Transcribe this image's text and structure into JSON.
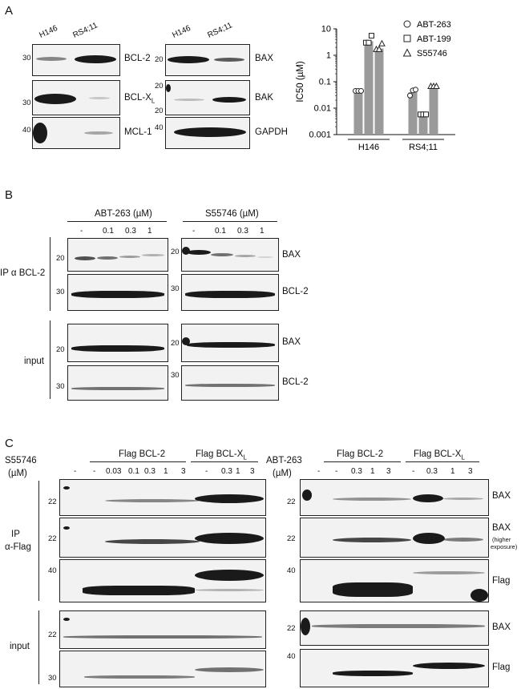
{
  "panels": {
    "a": "A",
    "b": "B",
    "c": "C"
  },
  "panel_a": {
    "lanes_left": [
      "H146",
      "RS4;11"
    ],
    "lanes_right": [
      "H146",
      "RS4;11"
    ],
    "left_labels": [
      "BCL-2",
      "BCL-X",
      "MCL-1"
    ],
    "bclxl_sub": "L",
    "right_labels": [
      "BAX",
      "BAK",
      "GAPDH"
    ],
    "mw_left": [
      "30",
      "30",
      "40"
    ],
    "mw_right": [
      "20",
      "20",
      "40"
    ],
    "mw_right_extra": "20"
  },
  "chart_data": {
    "type": "bar",
    "ylabel": "IC50 (µM)",
    "yscale": "log",
    "ylim": [
      0.001,
      10
    ],
    "ytick_labels": [
      "0.001",
      "0.01",
      "0.1",
      "1",
      "10"
    ],
    "categories": [
      "H146",
      "RS4;11"
    ],
    "series": [
      {
        "name": "ABT-263",
        "values": [
          0.047,
          0.04
        ],
        "points": [
          [
            0.045,
            0.045,
            0.045
          ],
          [
            0.03,
            0.047,
            0.05
          ]
        ]
      },
      {
        "name": "ABT-199",
        "values": [
          3.4,
          0.0058
        ],
        "points": [
          [
            3.0,
            3.0,
            5.5
          ],
          [
            0.0058,
            0.0058,
            0.0058
          ]
        ]
      },
      {
        "name": "S55746",
        "values": [
          1.8,
          0.068
        ],
        "points": [
          [
            1.7,
            1.7,
            2.8
          ],
          [
            0.068,
            0.068,
            0.068
          ]
        ]
      }
    ]
  },
  "panel_b": {
    "group1": "ABT-263 (µM)",
    "group2": "S55746 (µM)",
    "lanes": [
      "-",
      "0.1",
      "0.3",
      "1"
    ],
    "ip_label": "IP α BCL-2",
    "input_label": "input",
    "band_labels": [
      "BAX",
      "BCL-2",
      "BAX",
      "BCL-2"
    ],
    "mw": [
      "20",
      "30",
      "20",
      "30"
    ]
  },
  "panel_c": {
    "left_drug": "S55746",
    "left_unit": "(µM)",
    "right_drug": "ABT-263",
    "right_unit": "(µM)",
    "group_bcl2": "Flag BCL-2",
    "group_bclxl": "Flag BCL-X",
    "bclxl_sub": "L",
    "left_lanes": [
      "-",
      "-",
      "0.03",
      "0.1",
      "0.3",
      "1",
      "3",
      "-",
      "0.3",
      "1",
      "3"
    ],
    "right_lanes": [
      "-",
      "-",
      "0.3",
      "1",
      "3",
      "-",
      "0.3",
      "1",
      "3"
    ],
    "ip_label_1": "IP",
    "ip_label_2": "α-Flag",
    "input_label": "input",
    "band_labels": [
      "BAX",
      "BAX",
      "(higher",
      "exposure)",
      "Flag",
      "BAX",
      "Flag"
    ],
    "mw_left": [
      "22",
      "22",
      "40",
      "22",
      "30"
    ],
    "mw_right": [
      "22",
      "22",
      "40",
      "22",
      "40"
    ]
  }
}
